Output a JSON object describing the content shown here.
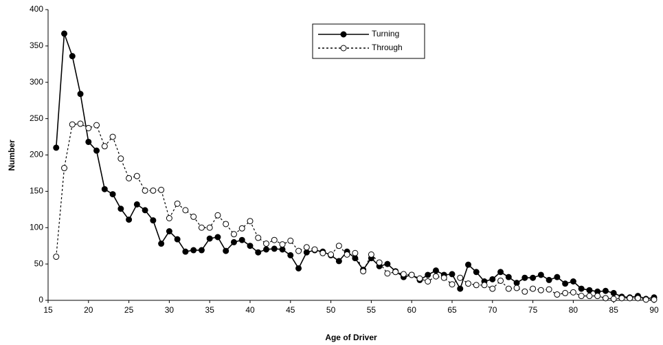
{
  "chart_data": {
    "type": "line",
    "xlabel": "Age of Driver",
    "ylabel": "Number",
    "x": [
      16,
      17,
      18,
      19,
      20,
      21,
      22,
      23,
      24,
      25,
      26,
      27,
      28,
      29,
      30,
      31,
      32,
      33,
      34,
      35,
      36,
      37,
      38,
      39,
      40,
      41,
      42,
      43,
      44,
      45,
      46,
      47,
      48,
      49,
      50,
      51,
      52,
      53,
      54,
      55,
      56,
      57,
      58,
      59,
      60,
      61,
      62,
      63,
      64,
      65,
      66,
      67,
      68,
      69,
      70,
      71,
      72,
      73,
      74,
      75,
      76,
      77,
      78,
      79,
      80,
      81,
      82,
      83,
      84,
      85,
      86,
      87,
      88,
      89,
      90
    ],
    "series": [
      {
        "name": "Turning",
        "color": "#000000",
        "line_style": "solid",
        "marker": "filled",
        "values": [
          210,
          367,
          336,
          284,
          218,
          206,
          153,
          146,
          126,
          111,
          132,
          124,
          110,
          78,
          95,
          84,
          67,
          69,
          69,
          85,
          87,
          68,
          80,
          83,
          75,
          66,
          70,
          71,
          70,
          62,
          44,
          66,
          69,
          67,
          62,
          54,
          67,
          58,
          42,
          58,
          47,
          50,
          40,
          32,
          35,
          28,
          35,
          41,
          35,
          36,
          16,
          49,
          39,
          26,
          29,
          39,
          32,
          24,
          31,
          31,
          35,
          28,
          32,
          23,
          26,
          16,
          14,
          12,
          13,
          10,
          5,
          4,
          6,
          2,
          4
        ]
      },
      {
        "name": "Through",
        "color": "#000000",
        "line_style": "dashed",
        "marker": "open",
        "values": [
          60,
          182,
          242,
          243,
          237,
          241,
          212,
          225,
          195,
          168,
          171,
          151,
          151,
          152,
          113,
          133,
          124,
          115,
          100,
          100,
          117,
          105,
          91,
          99,
          109,
          86,
          78,
          83,
          77,
          82,
          68,
          73,
          70,
          65,
          63,
          75,
          63,
          65,
          40,
          63,
          52,
          37,
          39,
          36,
          35,
          30,
          26,
          33,
          31,
          22,
          31,
          23,
          21,
          21,
          16,
          27,
          16,
          17,
          12,
          16,
          14,
          15,
          8,
          10,
          11,
          6,
          6,
          6,
          3,
          2,
          3,
          3,
          3,
          1,
          1
        ]
      }
    ],
    "xlim": [
      15,
      90
    ],
    "xticks": [
      15,
      20,
      25,
      30,
      35,
      40,
      45,
      50,
      55,
      60,
      65,
      70,
      75,
      80,
      85,
      90
    ],
    "ylim": [
      0,
      400
    ],
    "yticks": [
      0,
      50,
      100,
      150,
      200,
      250,
      300,
      350,
      400
    ],
    "grid": false,
    "legend": "top"
  }
}
